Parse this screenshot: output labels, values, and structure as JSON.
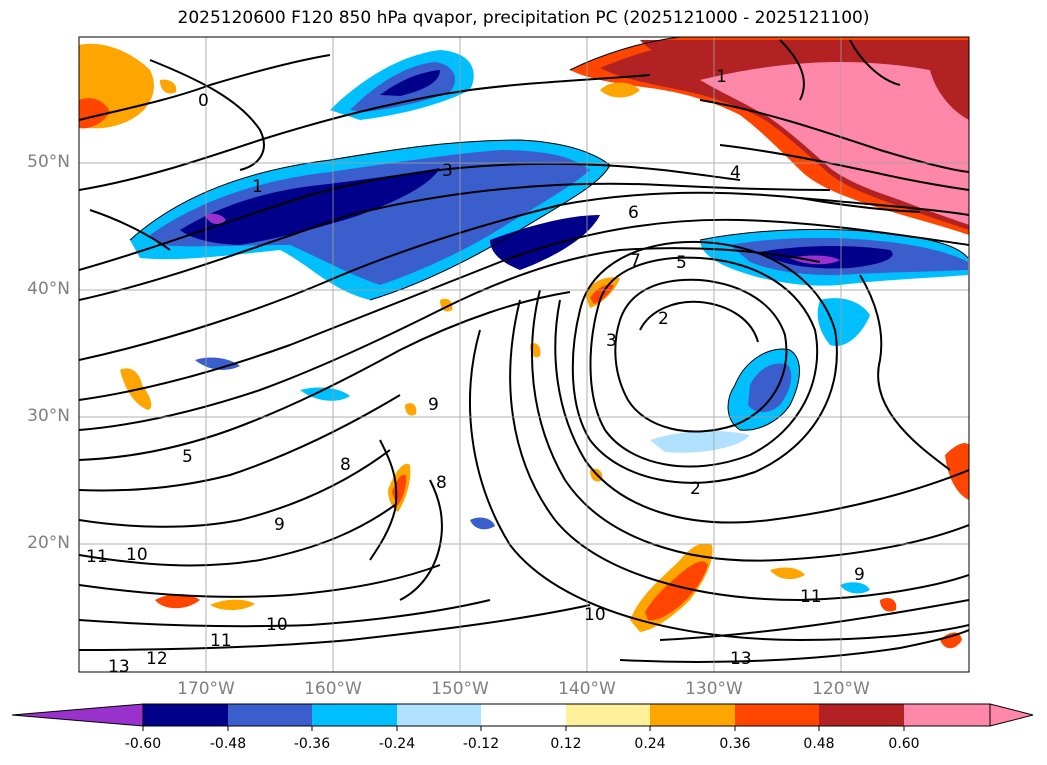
{
  "title": "2025120600 F120 850 hPa qvapor, precipitation PC (2025121000 - 2025121100)",
  "map": {
    "lat_labels": [
      "50°N",
      "40°N",
      "30°N",
      "20°N"
    ],
    "lon_labels": [
      "170°W",
      "160°W",
      "150°W",
      "140°W",
      "130°W",
      "120°W"
    ],
    "contour_labels": [
      "0",
      "1",
      "2",
      "3",
      "4",
      "5",
      "6",
      "7",
      "8",
      "9",
      "10",
      "11",
      "12",
      "13"
    ]
  },
  "colorbar": {
    "ticks": [
      "-0.60",
      "-0.48",
      "-0.36",
      "-0.24",
      "-0.12",
      "0.12",
      "0.24",
      "0.36",
      "0.48",
      "0.60"
    ],
    "colors": {
      "under": "#9932cc",
      "bins": [
        "#00008b",
        "#3a5fcd",
        "#00bfff",
        "#b0e2ff",
        "#ffffff",
        "#fff09a",
        "#ffa500",
        "#ff4500",
        "#b22222",
        "#ff88aa"
      ],
      "over": "#ff88aa"
    }
  }
}
